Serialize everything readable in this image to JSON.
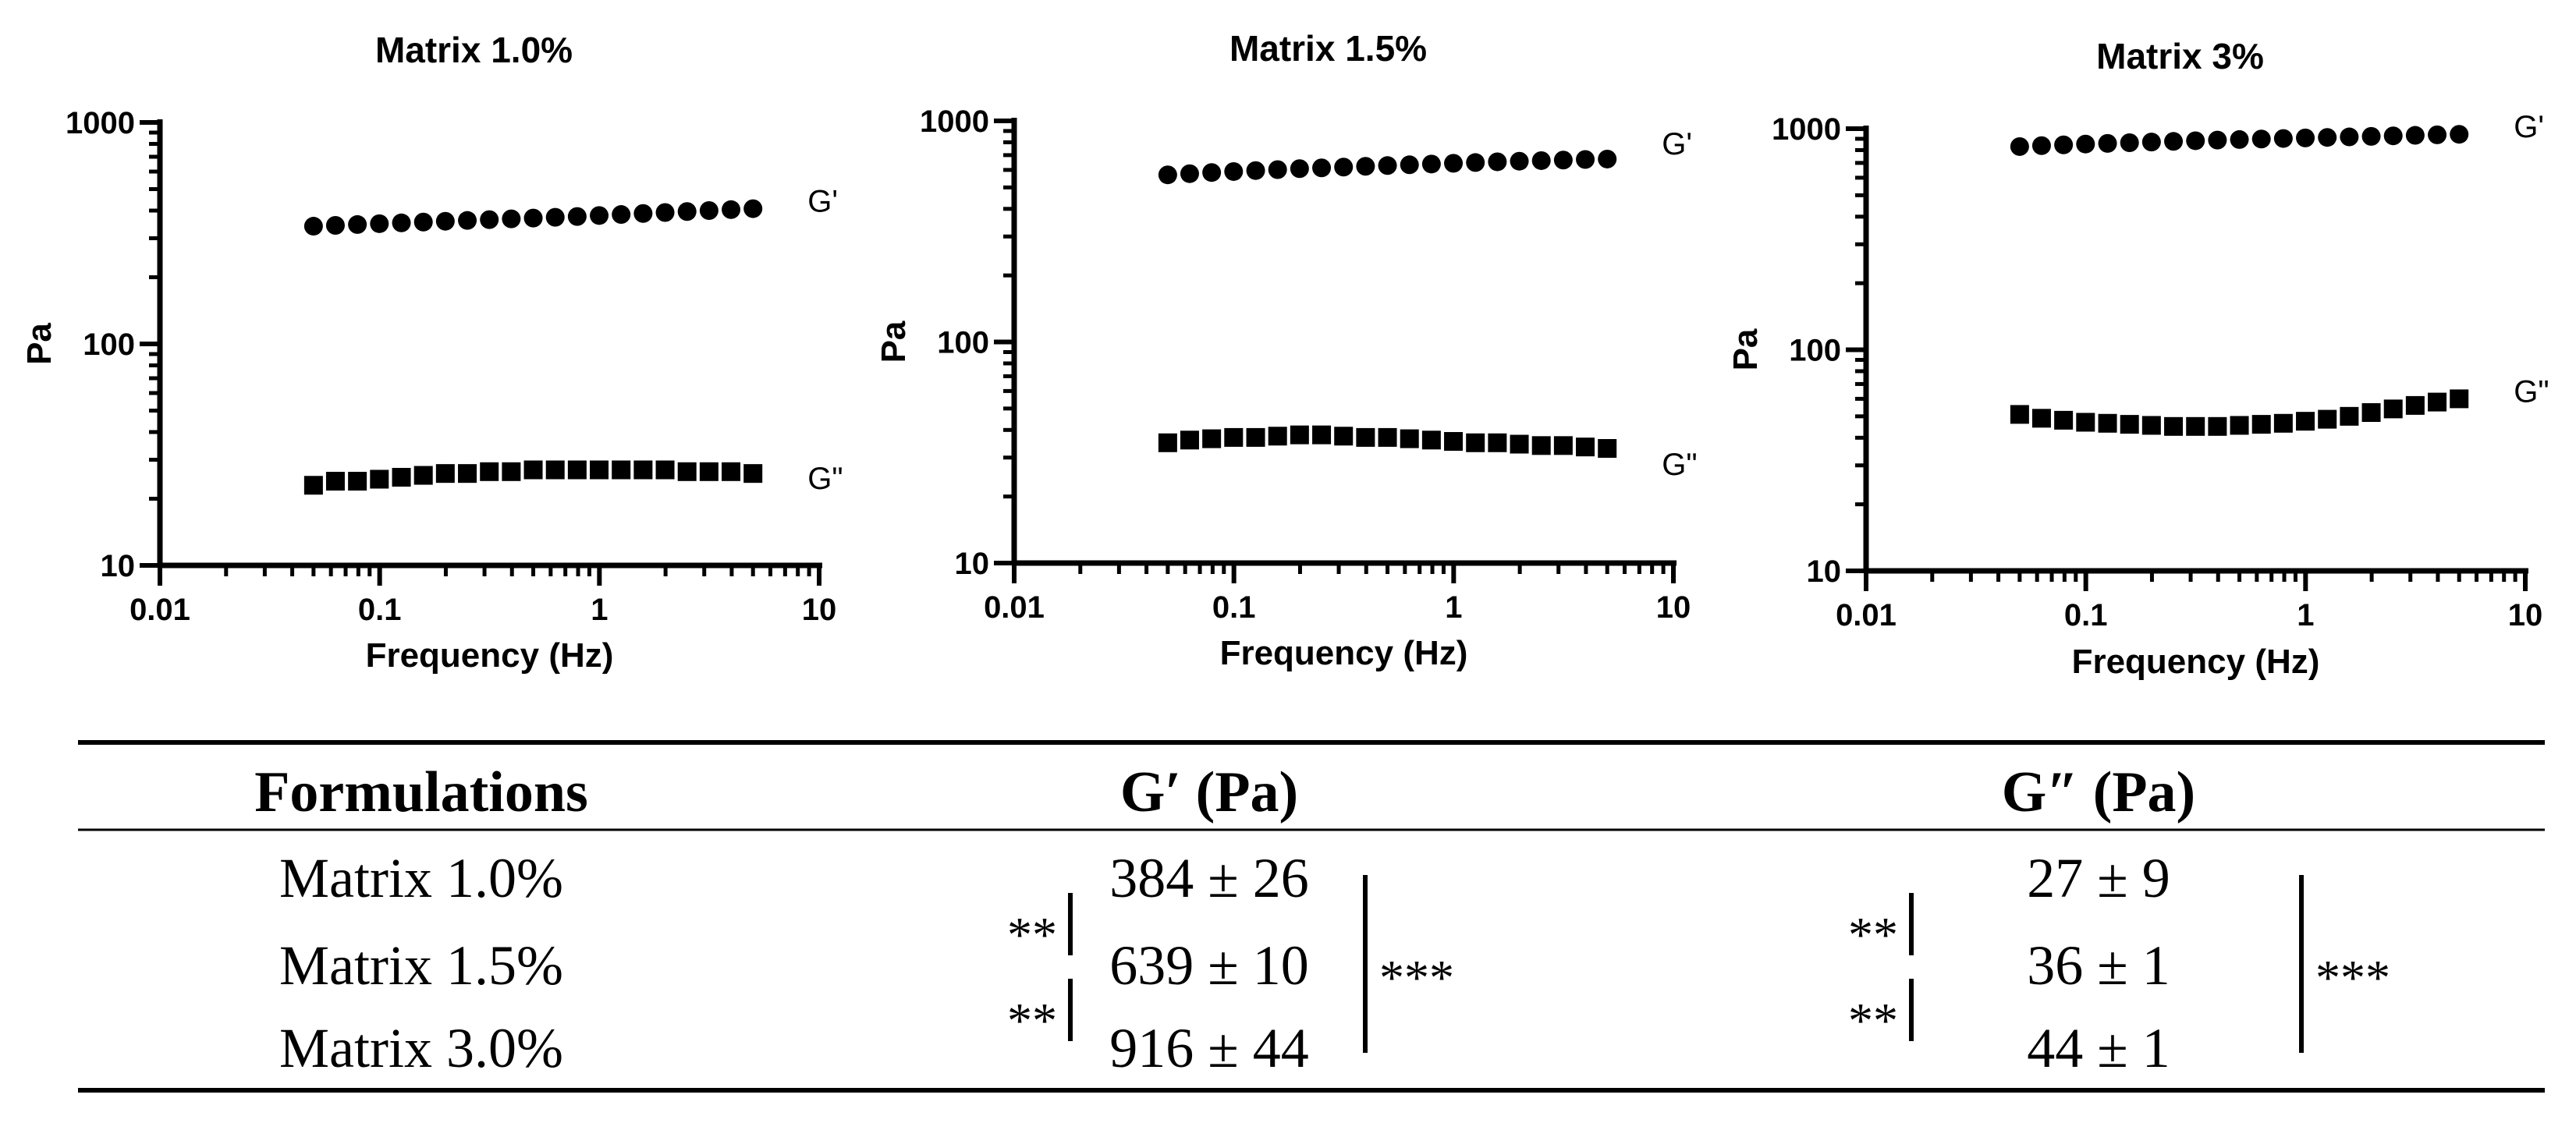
{
  "chart_data": [
    {
      "type": "scatter",
      "title": "Matrix 1.0%",
      "xlabel": "Frequency (Hz)",
      "ylabel": "Pa",
      "xscale": "log",
      "yscale": "log",
      "xlim": [
        0.01,
        10
      ],
      "ylim": [
        10,
        1000
      ],
      "x_ticks": [
        "0.01",
        "0.1",
        "1",
        "10"
      ],
      "y_ticks": [
        "10",
        "100",
        "1000"
      ],
      "x": [
        0.05,
        0.0629,
        0.0792,
        0.0997,
        0.1256,
        0.1581,
        0.199,
        0.2506,
        0.3155,
        0.3972,
        0.5,
        0.6295,
        0.7924,
        0.9976,
        1.2559,
        1.5811,
        1.9905,
        2.5059,
        3.1548,
        3.9716,
        5.0
      ],
      "series": [
        {
          "name": "G'",
          "marker": "circle",
          "values": [
            340,
            343,
            346,
            349,
            352,
            355,
            358,
            361,
            364,
            367,
            370,
            373,
            376,
            380,
            384,
            388,
            392,
            396,
            400,
            404,
            408
          ]
        },
        {
          "name": "G\"",
          "marker": "square",
          "values": [
            23,
            24,
            24,
            24.5,
            25,
            25.5,
            26,
            26,
            26.5,
            26.5,
            27,
            27,
            27,
            27,
            27,
            27,
            27,
            26.5,
            26.5,
            26.5,
            26
          ]
        }
      ]
    },
    {
      "type": "scatter",
      "title": "Matrix 1.5%",
      "xlabel": "Frequency (Hz)",
      "ylabel": "Pa",
      "xscale": "log",
      "yscale": "log",
      "xlim": [
        0.01,
        10
      ],
      "ylim": [
        10,
        1000
      ],
      "x_ticks": [
        "0.01",
        "0.1",
        "1",
        "10"
      ],
      "y_ticks": [
        "10",
        "100",
        "1000"
      ],
      "x": [
        0.05,
        0.0629,
        0.0792,
        0.0997,
        0.1256,
        0.1581,
        0.199,
        0.2506,
        0.3155,
        0.3972,
        0.5,
        0.6295,
        0.7924,
        0.9976,
        1.2559,
        1.5811,
        1.9905,
        2.5059,
        3.1548,
        3.9716,
        5.0
      ],
      "series": [
        {
          "name": "G'",
          "marker": "circle",
          "values": [
            570,
            577,
            584,
            590,
            596,
            602,
            608,
            613,
            618,
            623,
            628,
            633,
            638,
            643,
            648,
            653,
            657,
            661,
            665,
            669,
            672
          ]
        },
        {
          "name": "G\"",
          "marker": "square",
          "values": [
            35,
            36,
            36.5,
            37,
            37,
            37.5,
            38,
            38,
            37.5,
            37,
            37,
            36.5,
            36,
            35.5,
            35,
            35,
            34.5,
            34,
            34,
            33.5,
            33
          ]
        }
      ]
    },
    {
      "type": "scatter",
      "title": "Matrix 3%",
      "xlabel": "Frequency (Hz)",
      "ylabel": "Pa",
      "xscale": "log",
      "yscale": "log",
      "xlim": [
        0.01,
        10
      ],
      "ylim": [
        10,
        1000
      ],
      "x_ticks": [
        "0.01",
        "0.1",
        "1",
        "10"
      ],
      "y_ticks": [
        "10",
        "100",
        "1000"
      ],
      "x": [
        0.05,
        0.0629,
        0.0792,
        0.0997,
        0.1256,
        0.1581,
        0.199,
        0.2506,
        0.3155,
        0.3972,
        0.5,
        0.6295,
        0.7924,
        0.9976,
        1.2559,
        1.5811,
        1.9905,
        2.5059,
        3.1548,
        3.9716,
        5.0
      ],
      "series": [
        {
          "name": "G'",
          "marker": "circle",
          "values": [
            830,
            838,
            845,
            852,
            858,
            864,
            870,
            876,
            882,
            888,
            893,
            898,
            903,
            908,
            913,
            918,
            923,
            928,
            933,
            938,
            943
          ]
        },
        {
          "name": "G\"",
          "marker": "square",
          "values": [
            51,
            49,
            48,
            47,
            46.5,
            46,
            45.5,
            45,
            45,
            45,
            45.5,
            46,
            46.5,
            47.5,
            48.5,
            50,
            52,
            54,
            56,
            58,
            60
          ]
        }
      ]
    }
  ],
  "table": {
    "headers": [
      "Formulations",
      "G′ (Pa)",
      "G″ (Pa)"
    ],
    "rows": [
      {
        "formulation": "Matrix 1.0%",
        "g_prime": "384 ± 26",
        "g_double_prime": "27 ± 9"
      },
      {
        "formulation": "Matrix 1.5%",
        "g_prime": "639 ± 10",
        "g_double_prime": "36 ± 1"
      },
      {
        "formulation": "Matrix 3.0%",
        "g_prime": "916 ± 44",
        "g_double_prime": "44 ± 1"
      }
    ],
    "significance": {
      "g_prime": {
        "pair_1_2": "**",
        "pair_2_3": "**",
        "overall": "***"
      },
      "g_double_prime": {
        "pair_1_2": "**",
        "pair_2_3": "**",
        "overall": "***"
      }
    }
  }
}
